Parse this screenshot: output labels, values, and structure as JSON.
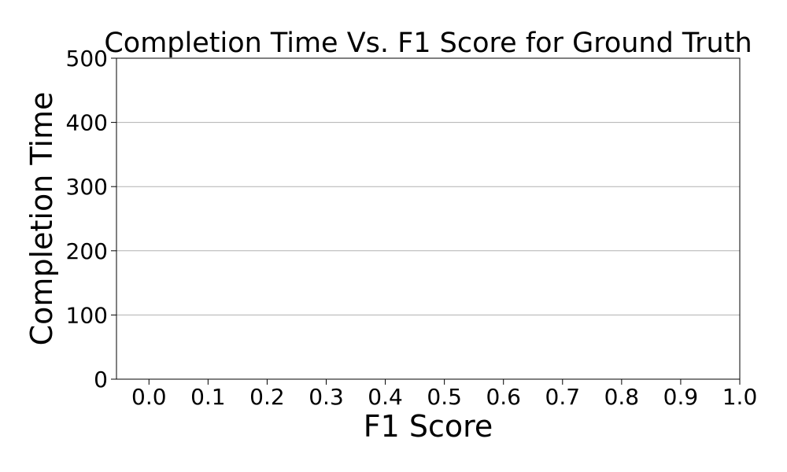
{
  "chart_data": {
    "type": "scatter",
    "title": "Completion Time Vs. F1 Score for Ground Truth",
    "xlabel": "F1 Score",
    "ylabel": "Completion Time",
    "xlim": [
      -0.055,
      1.0
    ],
    "ylim": [
      0,
      500
    ],
    "xticks": [
      0.0,
      0.1,
      0.2,
      0.3,
      0.4,
      0.5,
      0.6,
      0.7,
      0.8,
      0.9,
      1.0
    ],
    "xtick_labels": [
      "0.0",
      "0.1",
      "0.2",
      "0.3",
      "0.4",
      "0.5",
      "0.6",
      "0.7",
      "0.8",
      "0.9",
      "1.0"
    ],
    "yticks": [
      0,
      100,
      200,
      300,
      400,
      500
    ],
    "ytick_labels": [
      "0",
      "100",
      "200",
      "300",
      "400",
      "500"
    ],
    "grid": "y",
    "grid_color": "#b0b0b0",
    "series": [
      {
        "x": [],
        "y": []
      }
    ]
  }
}
